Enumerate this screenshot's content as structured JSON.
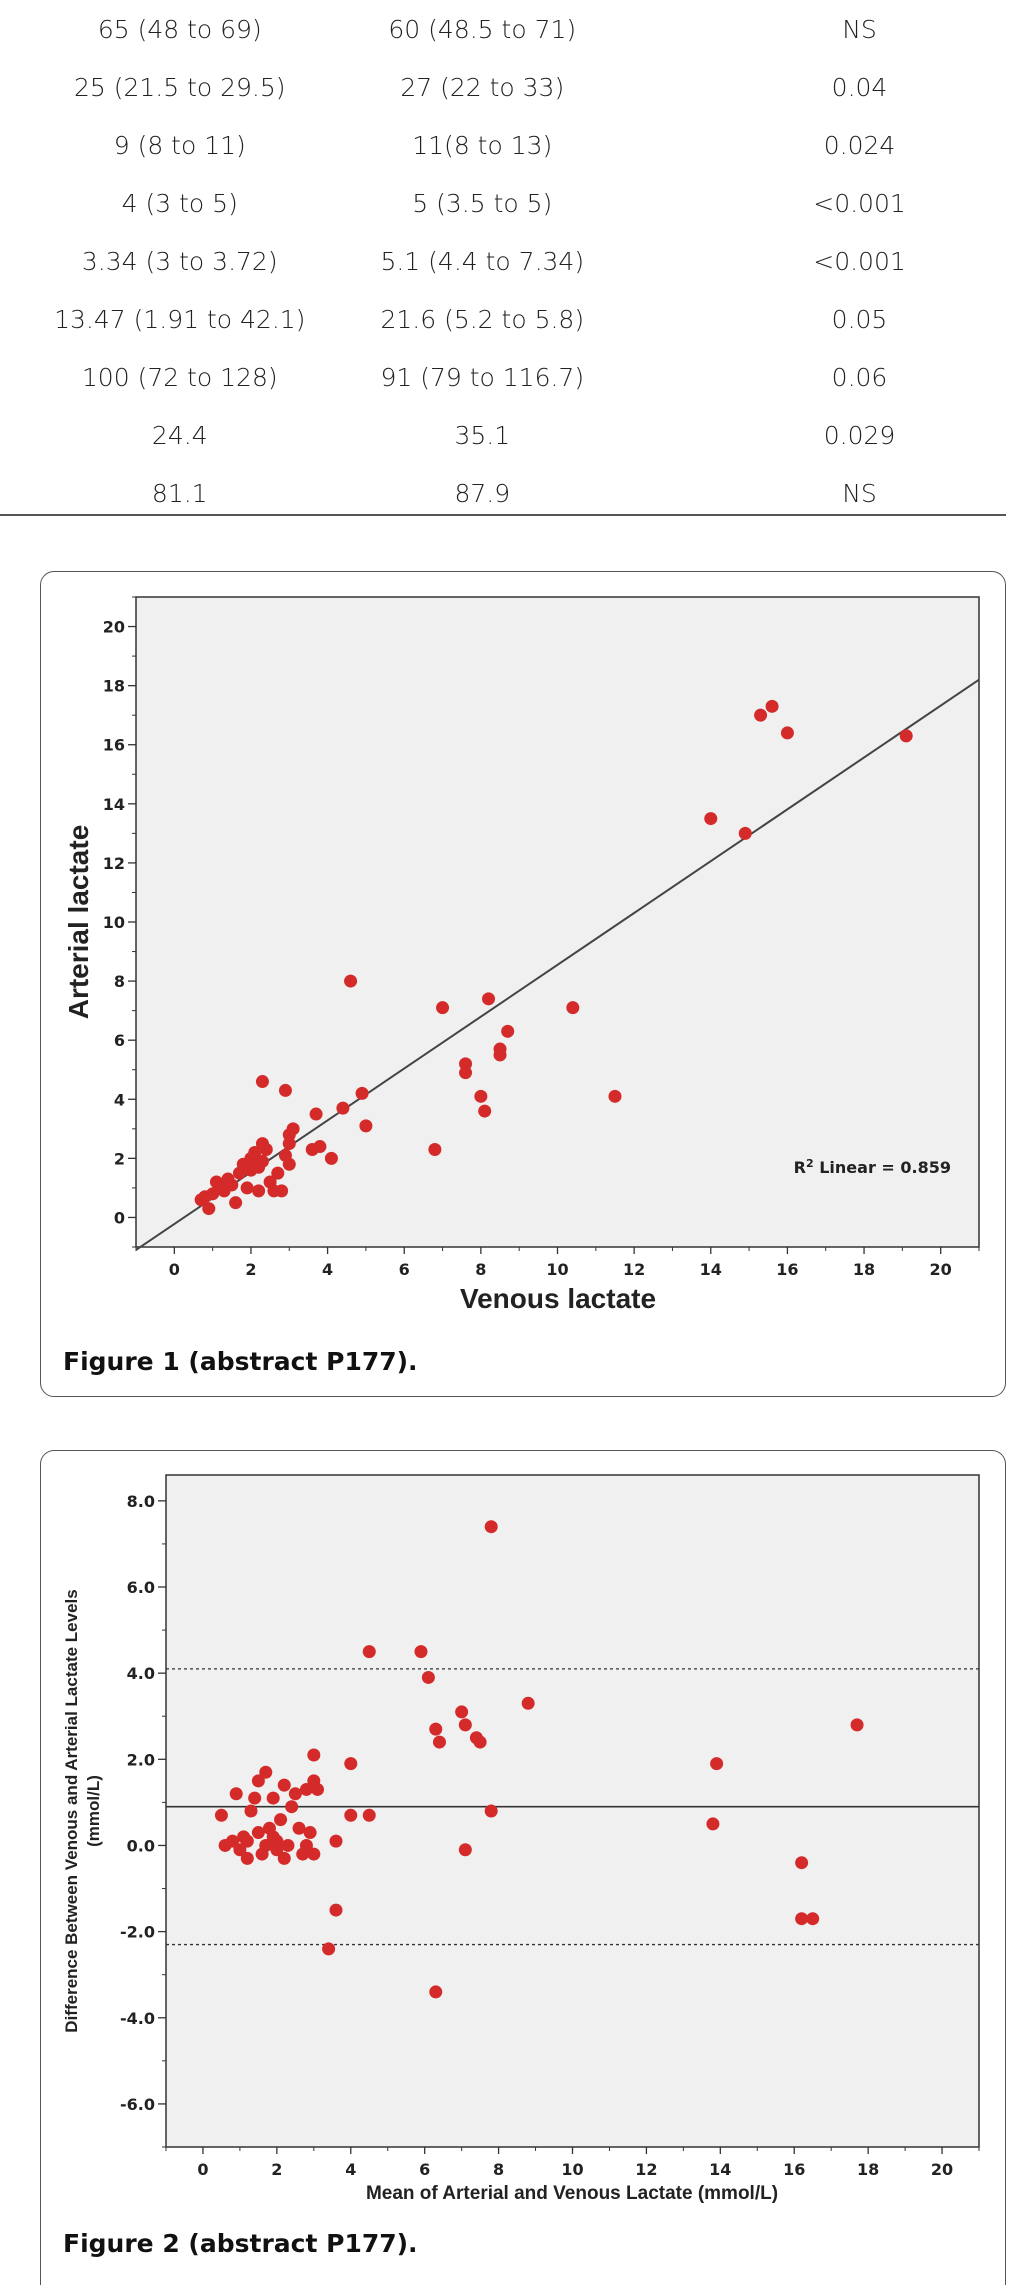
{
  "table": {
    "rows": [
      [
        "65 (48 to 69)",
        "60 (48.5 to 71)",
        "NS"
      ],
      [
        "25 (21.5 to 29.5)",
        "27 (22 to 33)",
        "0.04"
      ],
      [
        "9 (8 to 11)",
        "11(8 to 13)",
        "0.024"
      ],
      [
        "4 (3 to 5)",
        "5 (3.5 to 5)",
        "<0.001"
      ],
      [
        "3.34 (3 to 3.72)",
        "5.1 (4.4 to 7.34)",
        "<0.001"
      ],
      [
        "13.47 (1.91 to 42.1)",
        "21.6 (5.2 to 5.8)",
        "0.05"
      ],
      [
        "100 (72 to 128)",
        "91 (79 to 116.7)",
        "0.06"
      ],
      [
        "24.4",
        "35.1",
        "0.029"
      ],
      [
        "81.1",
        "87.9",
        "NS"
      ]
    ]
  },
  "figure1": {
    "caption": "Figure 1 (abstract P177).",
    "chart_data": {
      "type": "scatter",
      "xlabel": "Venous lactate",
      "ylabel": "Arterial lactate",
      "xlim": [
        -1,
        21
      ],
      "ylim": [
        -1,
        21
      ],
      "xticks": [
        0,
        2,
        4,
        6,
        8,
        10,
        12,
        14,
        16,
        18,
        20
      ],
      "yticks": [
        0,
        2,
        4,
        6,
        8,
        10,
        12,
        14,
        16,
        18,
        20
      ],
      "annotation_prefix": "R",
      "annotation_sup": "2",
      "annotation_text": " Linear = 0.859",
      "fit_line": {
        "x": [
          -1,
          21
        ],
        "y": [
          -1.1,
          18.2
        ]
      },
      "points": [
        [
          0.7,
          0.6
        ],
        [
          0.8,
          0.7
        ],
        [
          0.9,
          0.3
        ],
        [
          1.0,
          0.8
        ],
        [
          1.1,
          1.2
        ],
        [
          1.2,
          1.0
        ],
        [
          1.3,
          0.9
        ],
        [
          1.4,
          1.3
        ],
        [
          1.5,
          1.1
        ],
        [
          1.6,
          0.5
        ],
        [
          1.7,
          1.5
        ],
        [
          1.8,
          1.8
        ],
        [
          1.9,
          1.0
        ],
        [
          2.0,
          2.0
        ],
        [
          2.0,
          1.6
        ],
        [
          2.1,
          2.2
        ],
        [
          2.2,
          0.9
        ],
        [
          2.2,
          1.7
        ],
        [
          2.3,
          2.5
        ],
        [
          2.3,
          1.9
        ],
        [
          2.4,
          2.3
        ],
        [
          2.5,
          1.2
        ],
        [
          2.6,
          0.9
        ],
        [
          2.7,
          1.5
        ],
        [
          2.8,
          0.9
        ],
        [
          2.9,
          2.1
        ],
        [
          3.0,
          2.8
        ],
        [
          3.0,
          2.5
        ],
        [
          3.0,
          1.8
        ],
        [
          3.1,
          3.0
        ],
        [
          2.3,
          4.6
        ],
        [
          2.9,
          4.3
        ],
        [
          3.6,
          2.3
        ],
        [
          3.7,
          3.5
        ],
        [
          3.8,
          2.4
        ],
        [
          4.1,
          2.0
        ],
        [
          4.4,
          3.7
        ],
        [
          4.6,
          8.0
        ],
        [
          4.9,
          4.2
        ],
        [
          5.0,
          3.1
        ],
        [
          6.8,
          2.3
        ],
        [
          7.0,
          7.1
        ],
        [
          7.6,
          5.2
        ],
        [
          7.6,
          4.9
        ],
        [
          8.0,
          4.1
        ],
        [
          8.1,
          3.6
        ],
        [
          8.2,
          7.4
        ],
        [
          8.5,
          5.5
        ],
        [
          8.5,
          5.7
        ],
        [
          8.7,
          6.3
        ],
        [
          10.4,
          7.1
        ],
        [
          11.5,
          4.1
        ],
        [
          14.0,
          13.5
        ],
        [
          14.9,
          13.0
        ],
        [
          15.3,
          17.0
        ],
        [
          15.6,
          17.3
        ],
        [
          16.0,
          16.4
        ],
        [
          19.1,
          16.3
        ]
      ]
    }
  },
  "figure2": {
    "caption": "Figure 2 (abstract P177).",
    "chart_data": {
      "type": "scatter",
      "xlabel": "Mean of Arterial and Venous Lactate (mmol/L)",
      "ylabel_line1": "Difference Between Venous and Arterial Lactate Levels",
      "ylabel_line2": "(mmol/L)",
      "xlim": [
        -1,
        21
      ],
      "ylim": [
        -7,
        8.6
      ],
      "xticks": [
        0,
        2,
        4,
        6,
        8,
        10,
        12,
        14,
        16,
        18,
        20
      ],
      "yticks": [
        -6.0,
        -4.0,
        -2.0,
        0.0,
        2.0,
        4.0,
        6.0,
        8.0
      ],
      "mean_line": 0.9,
      "upper_limit": 4.1,
      "lower_limit": -2.3,
      "points": [
        [
          0.5,
          0.7
        ],
        [
          0.6,
          0.0
        ],
        [
          0.8,
          0.1
        ],
        [
          0.9,
          1.2
        ],
        [
          1.0,
          -0.1
        ],
        [
          1.1,
          0.2
        ],
        [
          1.2,
          0.1
        ],
        [
          1.2,
          -0.3
        ],
        [
          1.3,
          0.8
        ],
        [
          1.4,
          1.1
        ],
        [
          1.5,
          0.3
        ],
        [
          1.5,
          1.5
        ],
        [
          1.6,
          -0.2
        ],
        [
          1.7,
          1.7
        ],
        [
          1.7,
          0.0
        ],
        [
          1.8,
          0.4
        ],
        [
          1.9,
          0.2
        ],
        [
          1.9,
          1.1
        ],
        [
          2.0,
          -0.1
        ],
        [
          2.0,
          0.1
        ],
        [
          2.1,
          0.6
        ],
        [
          2.2,
          -0.3
        ],
        [
          2.2,
          1.4
        ],
        [
          2.3,
          0.0
        ],
        [
          2.4,
          0.9
        ],
        [
          2.5,
          1.2
        ],
        [
          2.6,
          0.4
        ],
        [
          2.7,
          -0.2
        ],
        [
          2.8,
          1.3
        ],
        [
          2.8,
          0.0
        ],
        [
          2.9,
          0.3
        ],
        [
          3.0,
          -0.2
        ],
        [
          3.0,
          1.5
        ],
        [
          3.0,
          2.1
        ],
        [
          3.1,
          1.3
        ],
        [
          3.4,
          -2.4
        ],
        [
          3.6,
          0.1
        ],
        [
          3.6,
          -1.5
        ],
        [
          4.0,
          0.7
        ],
        [
          4.0,
          1.9
        ],
        [
          4.5,
          4.5
        ],
        [
          4.5,
          0.7
        ],
        [
          5.9,
          4.5
        ],
        [
          6.1,
          3.9
        ],
        [
          6.3,
          2.7
        ],
        [
          6.3,
          -3.4
        ],
        [
          6.4,
          2.4
        ],
        [
          7.0,
          3.1
        ],
        [
          7.1,
          2.8
        ],
        [
          7.1,
          -0.1
        ],
        [
          7.4,
          2.5
        ],
        [
          7.5,
          2.4
        ],
        [
          7.8,
          7.4
        ],
        [
          7.8,
          0.8
        ],
        [
          8.8,
          3.3
        ],
        [
          13.8,
          0.5
        ],
        [
          13.9,
          1.9
        ],
        [
          16.2,
          -0.4
        ],
        [
          16.2,
          -1.7
        ],
        [
          16.5,
          -1.7
        ],
        [
          17.7,
          2.8
        ]
      ]
    }
  }
}
